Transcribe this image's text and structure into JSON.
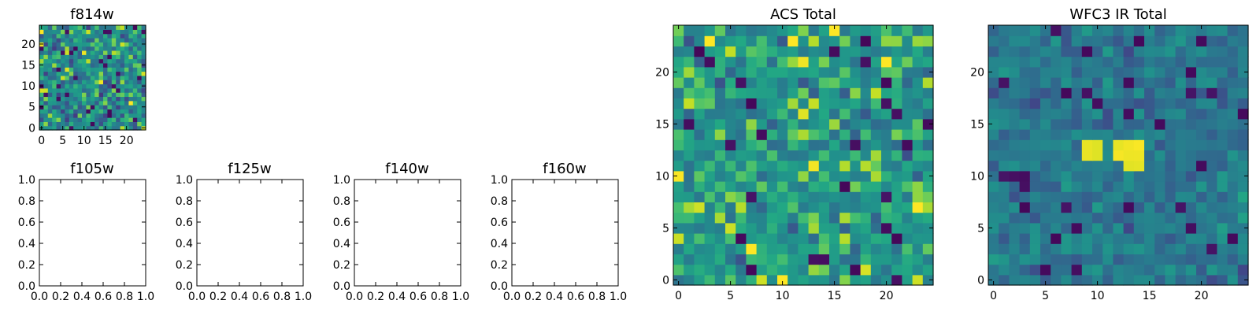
{
  "figure": {
    "colormap": "viridis"
  },
  "chart_data": [
    {
      "id": "f814w",
      "type": "heatmap",
      "title": "f814w",
      "grid_size": 25,
      "seed": 11,
      "value_range": [
        0,
        1
      ],
      "value_bias": 0.62,
      "value_spread": 0.26,
      "dark_fraction": 0.06,
      "xlim": [
        -0.5,
        24.5
      ],
      "ylim": [
        -0.5,
        24.5
      ],
      "xticks": [
        0,
        5,
        10,
        15,
        20
      ],
      "yticks": [
        0,
        5,
        10,
        15,
        20
      ],
      "xticklabels": [
        "0",
        "5",
        "10",
        "15",
        "20"
      ],
      "yticklabels": [
        "0",
        "5",
        "10",
        "15",
        "20"
      ]
    },
    {
      "id": "f105w",
      "type": "empty",
      "title": "f105w",
      "xlim": [
        0,
        1
      ],
      "ylim": [
        0,
        1
      ],
      "xticks": [
        0,
        0.2,
        0.4,
        0.6,
        0.8,
        1.0
      ],
      "yticks": [
        0,
        0.2,
        0.4,
        0.6,
        0.8,
        1.0
      ],
      "xticklabels": [
        "0.0",
        "0.2",
        "0.4",
        "0.6",
        "0.8",
        "1.0"
      ],
      "yticklabels": [
        "0.0",
        "0.2",
        "0.4",
        "0.6",
        "0.8",
        "1.0"
      ]
    },
    {
      "id": "f125w",
      "type": "empty",
      "title": "f125w",
      "xlim": [
        0,
        1
      ],
      "ylim": [
        0,
        1
      ],
      "xticks": [
        0,
        0.2,
        0.4,
        0.6,
        0.8,
        1.0
      ],
      "yticks": [
        0,
        0.2,
        0.4,
        0.6,
        0.8,
        1.0
      ],
      "xticklabels": [
        "0.0",
        "0.2",
        "0.4",
        "0.6",
        "0.8",
        "1.0"
      ],
      "yticklabels": [
        "0.0",
        "0.2",
        "0.4",
        "0.6",
        "0.8",
        "1.0"
      ]
    },
    {
      "id": "f140w",
      "type": "empty",
      "title": "f140w",
      "xlim": [
        0,
        1
      ],
      "ylim": [
        0,
        1
      ],
      "xticks": [
        0,
        0.2,
        0.4,
        0.6,
        0.8,
        1.0
      ],
      "yticks": [
        0,
        0.2,
        0.4,
        0.6,
        0.8,
        1.0
      ],
      "xticklabels": [
        "0.0",
        "0.2",
        "0.4",
        "0.6",
        "0.8",
        "1.0"
      ],
      "yticklabels": [
        "0.0",
        "0.2",
        "0.4",
        "0.6",
        "0.8",
        "1.0"
      ]
    },
    {
      "id": "f160w",
      "type": "empty",
      "title": "f160w",
      "xlim": [
        0,
        1
      ],
      "ylim": [
        0,
        1
      ],
      "xticks": [
        0,
        0.2,
        0.4,
        0.6,
        0.8,
        1.0
      ],
      "yticks": [
        0,
        0.2,
        0.4,
        0.6,
        0.8,
        1.0
      ],
      "xticklabels": [
        "0.0",
        "0.2",
        "0.4",
        "0.6",
        "0.8",
        "1.0"
      ],
      "yticklabels": [
        "0.0",
        "0.2",
        "0.4",
        "0.6",
        "0.8",
        "1.0"
      ]
    },
    {
      "id": "acs-total",
      "type": "heatmap",
      "title": "ACS Total",
      "grid_size": 25,
      "seed": 23,
      "value_range": [
        0,
        1
      ],
      "value_bias": 0.68,
      "value_spread": 0.22,
      "dark_fraction": 0.035,
      "xlim": [
        -0.5,
        24.5
      ],
      "ylim": [
        -0.5,
        24.5
      ],
      "xticks": [
        0,
        5,
        10,
        15,
        20
      ],
      "yticks": [
        0,
        5,
        10,
        15,
        20
      ],
      "xticklabels": [
        "0",
        "5",
        "10",
        "15",
        "20"
      ],
      "yticklabels": [
        "0",
        "5",
        "10",
        "15",
        "20"
      ]
    },
    {
      "id": "wfc3-ir-total",
      "type": "heatmap",
      "title": "WFC3 IR Total",
      "grid_size": 25,
      "seed": 37,
      "value_range": [
        0,
        1
      ],
      "value_bias": 0.5,
      "value_spread": 0.14,
      "dark_fraction": 0.035,
      "bright_cells": [
        [
          9,
          12
        ],
        [
          9,
          13
        ],
        [
          10,
          12
        ],
        [
          10,
          13
        ],
        [
          12,
          12
        ],
        [
          12,
          13
        ],
        [
          13,
          12
        ],
        [
          13,
          13
        ],
        [
          14,
          12
        ],
        [
          14,
          13
        ],
        [
          13,
          11
        ],
        [
          14,
          11
        ]
      ],
      "xlim": [
        -0.5,
        24.5
      ],
      "ylim": [
        -0.5,
        24.5
      ],
      "xticks": [
        0,
        5,
        10,
        15,
        20
      ],
      "yticks": [
        0,
        5,
        10,
        15,
        20
      ],
      "xticklabels": [
        "0",
        "5",
        "10",
        "15",
        "20"
      ],
      "yticklabels": [
        "0",
        "5",
        "10",
        "15",
        "20"
      ]
    }
  ]
}
